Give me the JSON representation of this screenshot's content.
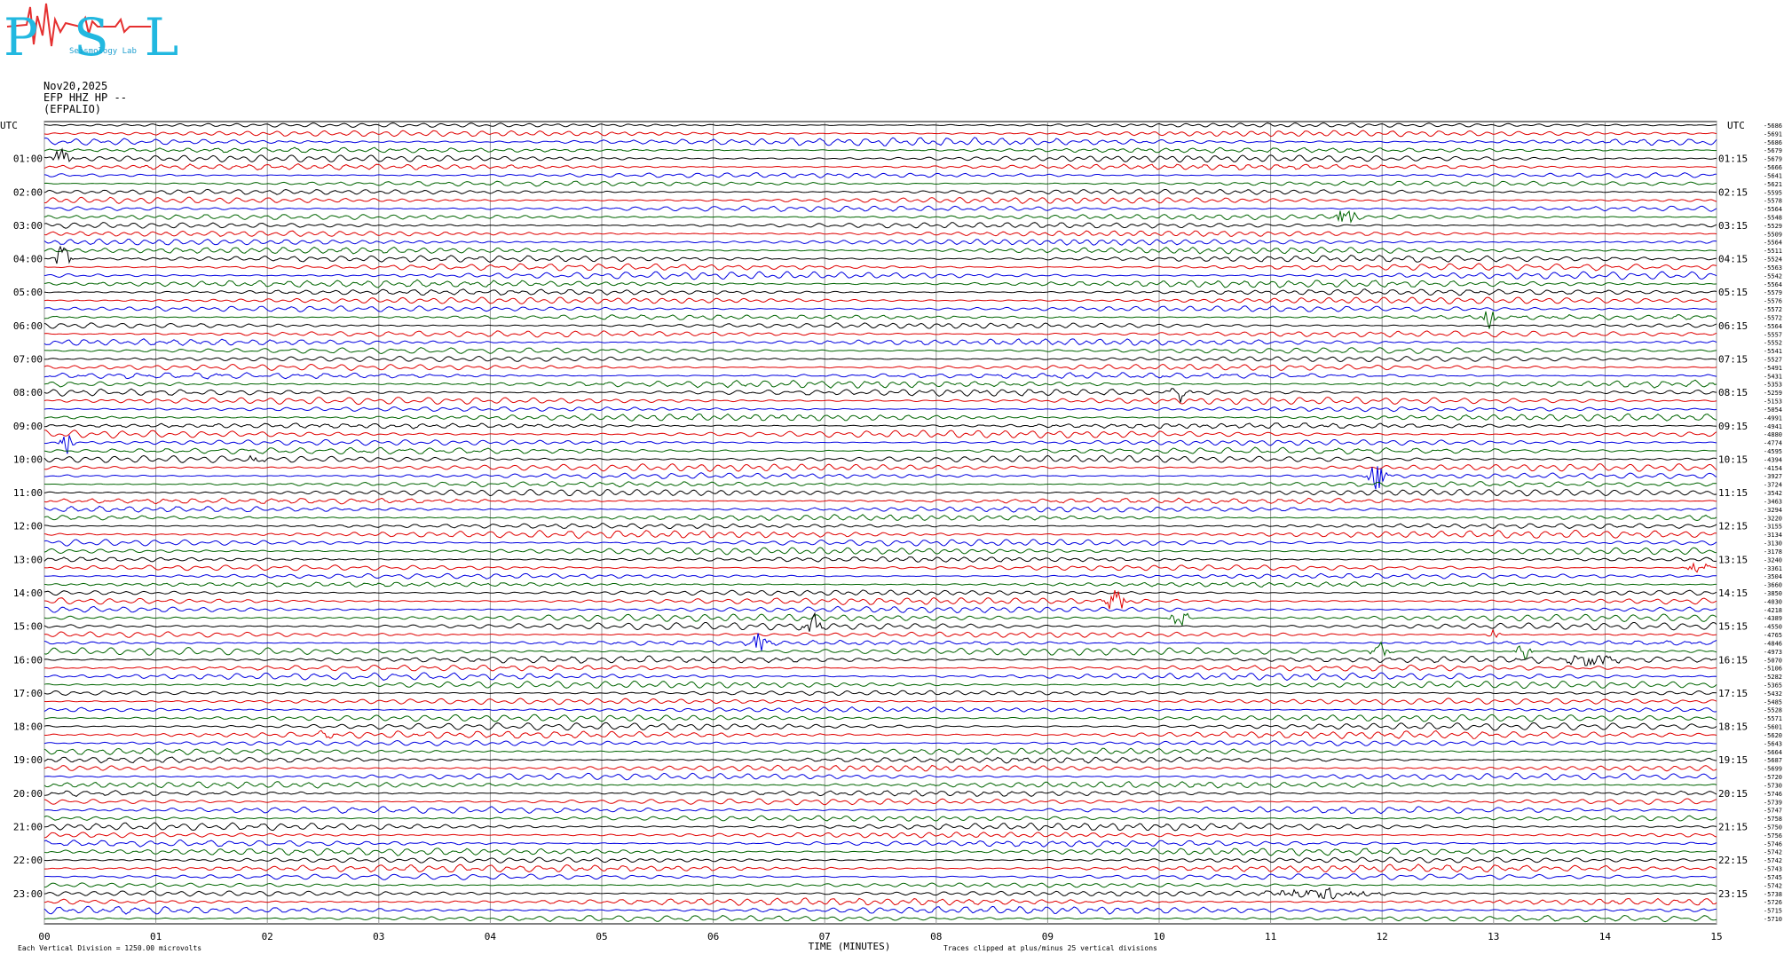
{
  "logo": {
    "letters": "PSL",
    "subtitle": "Seismology Lab"
  },
  "header": {
    "date": "Nov20,2025",
    "channel": "EFP HHZ HP --",
    "station": "(EFPALIO)"
  },
  "axis": {
    "left_title": "UTC",
    "right_title": "UTC",
    "left_hours": [
      "01:00",
      "02:00",
      "03:00",
      "04:00",
      "05:00",
      "06:00",
      "07:00",
      "08:00",
      "09:00",
      "10:00",
      "11:00",
      "12:00",
      "13:00",
      "14:00",
      "15:00",
      "16:00",
      "17:00",
      "18:00",
      "19:00",
      "20:00",
      "21:00",
      "22:00",
      "23:00"
    ],
    "right_hours": [
      "01:15",
      "02:15",
      "03:15",
      "04:15",
      "05:15",
      "06:15",
      "07:15",
      "08:15",
      "09:15",
      "10:15",
      "11:15",
      "12:15",
      "13:15",
      "14:15",
      "15:15",
      "16:15",
      "17:15",
      "18:15",
      "19:15",
      "20:15",
      "21:15",
      "22:15",
      "23:15"
    ],
    "minutes": [
      "00",
      "01",
      "02",
      "03",
      "04",
      "05",
      "06",
      "07",
      "08",
      "09",
      "10",
      "11",
      "12",
      "13",
      "14",
      "15"
    ],
    "x_title": "TIME (MINUTES)"
  },
  "line_offsets": [
    -5686,
    -5691,
    -5686,
    -5679,
    -5679,
    -5666,
    -5641,
    -5621,
    -5595,
    -5578,
    -5564,
    -5548,
    -5529,
    -5509,
    -5564,
    -5511,
    -5524,
    -5563,
    -5542,
    -5564,
    -5579,
    -5576,
    -5572,
    -5572,
    -5564,
    -5557,
    -5552,
    -5541,
    -5527,
    -5491,
    -5431,
    -5353,
    -5259,
    -5153,
    -5054,
    -4991,
    -4941,
    -4880,
    -4774,
    -4595,
    -4394,
    -4154,
    -3927,
    -3724,
    -3542,
    -3463,
    -3294,
    -3220,
    -3155,
    -3134,
    -3130,
    -3178,
    -3240,
    -3361,
    -3504,
    -3660,
    -3850,
    -4030,
    -4218,
    -4389,
    -4550,
    -4765,
    -4846,
    -4973,
    -5070,
    -5106,
    -5282,
    -5365,
    -5432,
    -5485,
    -5528,
    -5571,
    -5601,
    -5620,
    -5643,
    -5664,
    -5687,
    -5699,
    -5720,
    -5730,
    -5746,
    -5739,
    -5747,
    -5758,
    -5750,
    -5756,
    -5746,
    -5742,
    -5742,
    -5743,
    -5745,
    -5742,
    -5738,
    -5726,
    -5715,
    -5710
  ],
  "footer": {
    "scale": "Each Vertical Division = 1250.00 microvolts",
    "clip": "Traces clipped at plus/minus 25 vertical divisions"
  }
}
